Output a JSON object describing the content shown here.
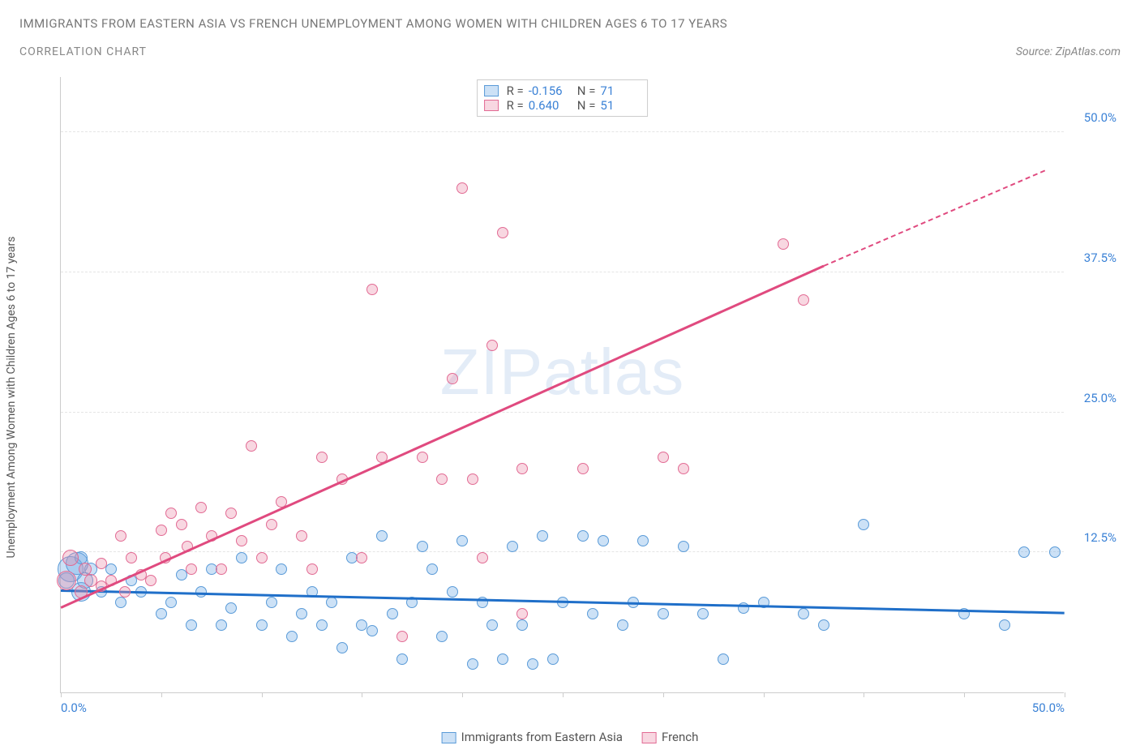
{
  "header": {
    "title": "IMMIGRANTS FROM EASTERN ASIA VS FRENCH UNEMPLOYMENT AMONG WOMEN WITH CHILDREN AGES 6 TO 17 YEARS",
    "subtitle": "CORRELATION CHART",
    "source": "Source: ZipAtlas.com"
  },
  "chart": {
    "type": "scatter",
    "y_axis_label": "Unemployment Among Women with Children Ages 6 to 17 years",
    "xlim": [
      0,
      50
    ],
    "ylim": [
      0,
      55
    ],
    "x_ticks": [
      0,
      5,
      10,
      15,
      20,
      25,
      30,
      35,
      40,
      45,
      50
    ],
    "x_tick_labels": {
      "0": "0.0%",
      "50": "50.0%"
    },
    "y_ticks": [
      12.5,
      25.0,
      37.5,
      50.0
    ],
    "y_tick_labels": [
      "12.5%",
      "25.0%",
      "37.5%",
      "50.0%"
    ],
    "grid_color": "#e5e5e5",
    "axis_color": "#cccccc",
    "tick_label_color": "#3b82d6",
    "background_color": "#ffffff",
    "watermark": "ZIPatlas",
    "series": [
      {
        "name": "Immigrants from Eastern Asia",
        "fill_color": "rgba(110, 170, 230, 0.35)",
        "stroke_color": "#5a9bd8",
        "reg_color": "#1f6fc9",
        "R": "-0.156",
        "N": "71",
        "regression": {
          "x1": 0,
          "y1": 9.0,
          "x2": 50,
          "y2": 7.0
        },
        "points": [
          {
            "x": 0.5,
            "y": 11,
            "r": 16
          },
          {
            "x": 0.3,
            "y": 10,
            "r": 10
          },
          {
            "x": 0.8,
            "y": 11.5,
            "r": 14
          },
          {
            "x": 1,
            "y": 9,
            "r": 12
          },
          {
            "x": 1,
            "y": 12,
            "r": 8
          },
          {
            "x": 1.2,
            "y": 10,
            "r": 10
          },
          {
            "x": 1.5,
            "y": 11,
            "r": 8
          },
          {
            "x": 2,
            "y": 9,
            "r": 7
          },
          {
            "x": 2.5,
            "y": 11,
            "r": 7
          },
          {
            "x": 3,
            "y": 8,
            "r": 7
          },
          {
            "x": 3.5,
            "y": 10,
            "r": 7
          },
          {
            "x": 4,
            "y": 9,
            "r": 7
          },
          {
            "x": 5,
            "y": 7,
            "r": 7
          },
          {
            "x": 5.5,
            "y": 8,
            "r": 7
          },
          {
            "x": 6,
            "y": 10.5,
            "r": 7
          },
          {
            "x": 6.5,
            "y": 6,
            "r": 7
          },
          {
            "x": 7,
            "y": 9,
            "r": 7
          },
          {
            "x": 7.5,
            "y": 11,
            "r": 7
          },
          {
            "x": 8,
            "y": 6,
            "r": 7
          },
          {
            "x": 8.5,
            "y": 7.5,
            "r": 7
          },
          {
            "x": 9,
            "y": 12,
            "r": 7
          },
          {
            "x": 10,
            "y": 6,
            "r": 7
          },
          {
            "x": 10.5,
            "y": 8,
            "r": 7
          },
          {
            "x": 11,
            "y": 11,
            "r": 7
          },
          {
            "x": 11.5,
            "y": 5,
            "r": 7
          },
          {
            "x": 12,
            "y": 7,
            "r": 7
          },
          {
            "x": 12.5,
            "y": 9,
            "r": 7
          },
          {
            "x": 13,
            "y": 6,
            "r": 7
          },
          {
            "x": 13.5,
            "y": 8,
            "r": 7
          },
          {
            "x": 14,
            "y": 4,
            "r": 7
          },
          {
            "x": 14.5,
            "y": 12,
            "r": 7
          },
          {
            "x": 15,
            "y": 6,
            "r": 7
          },
          {
            "x": 15.5,
            "y": 5.5,
            "r": 7
          },
          {
            "x": 16,
            "y": 14,
            "r": 7
          },
          {
            "x": 16.5,
            "y": 7,
            "r": 7
          },
          {
            "x": 17,
            "y": 3,
            "r": 7
          },
          {
            "x": 17.5,
            "y": 8,
            "r": 7
          },
          {
            "x": 18,
            "y": 13,
            "r": 7
          },
          {
            "x": 18.5,
            "y": 11,
            "r": 7
          },
          {
            "x": 19,
            "y": 5,
            "r": 7
          },
          {
            "x": 19.5,
            "y": 9,
            "r": 7
          },
          {
            "x": 20,
            "y": 13.5,
            "r": 7
          },
          {
            "x": 20.5,
            "y": 2.5,
            "r": 7
          },
          {
            "x": 21,
            "y": 8,
            "r": 7
          },
          {
            "x": 21.5,
            "y": 6,
            "r": 7
          },
          {
            "x": 22,
            "y": 3,
            "r": 7
          },
          {
            "x": 22.5,
            "y": 13,
            "r": 7
          },
          {
            "x": 23,
            "y": 6,
            "r": 7
          },
          {
            "x": 23.5,
            "y": 2.5,
            "r": 7
          },
          {
            "x": 24,
            "y": 14,
            "r": 7
          },
          {
            "x": 24.5,
            "y": 3,
            "r": 7
          },
          {
            "x": 25,
            "y": 8,
            "r": 7
          },
          {
            "x": 26,
            "y": 14,
            "r": 7
          },
          {
            "x": 26.5,
            "y": 7,
            "r": 7
          },
          {
            "x": 27,
            "y": 13.5,
            "r": 7
          },
          {
            "x": 28,
            "y": 6,
            "r": 7
          },
          {
            "x": 28.5,
            "y": 8,
            "r": 7
          },
          {
            "x": 29,
            "y": 13.5,
            "r": 7
          },
          {
            "x": 30,
            "y": 7,
            "r": 7
          },
          {
            "x": 31,
            "y": 13,
            "r": 7
          },
          {
            "x": 32,
            "y": 7,
            "r": 7
          },
          {
            "x": 33,
            "y": 3,
            "r": 7
          },
          {
            "x": 34,
            "y": 7.5,
            "r": 7
          },
          {
            "x": 35,
            "y": 8,
            "r": 7
          },
          {
            "x": 37,
            "y": 7,
            "r": 7
          },
          {
            "x": 38,
            "y": 6,
            "r": 7
          },
          {
            "x": 40,
            "y": 15,
            "r": 7
          },
          {
            "x": 45,
            "y": 7,
            "r": 7
          },
          {
            "x": 47,
            "y": 6,
            "r": 7
          },
          {
            "x": 48,
            "y": 12.5,
            "r": 7
          },
          {
            "x": 49.5,
            "y": 12.5,
            "r": 7
          }
        ]
      },
      {
        "name": "French",
        "fill_color": "rgba(235, 140, 170, 0.35)",
        "stroke_color": "#e26b94",
        "reg_color": "#e04a7f",
        "R": "0.640",
        "N": "51",
        "regression": {
          "x1": 0,
          "y1": 7.5,
          "x2": 38,
          "y2": 38
        },
        "regression_dash": {
          "x1": 38,
          "y1": 38,
          "x2": 49,
          "y2": 46.5
        },
        "points": [
          {
            "x": 0.5,
            "y": 12,
            "r": 10
          },
          {
            "x": 0.3,
            "y": 10,
            "r": 12
          },
          {
            "x": 1,
            "y": 9,
            "r": 8
          },
          {
            "x": 1.2,
            "y": 11,
            "r": 8
          },
          {
            "x": 1.5,
            "y": 10,
            "r": 8
          },
          {
            "x": 2,
            "y": 9.5,
            "r": 7
          },
          {
            "x": 2,
            "y": 11.5,
            "r": 7
          },
          {
            "x": 2.5,
            "y": 10,
            "r": 7
          },
          {
            "x": 3,
            "y": 14,
            "r": 7
          },
          {
            "x": 3.2,
            "y": 9,
            "r": 7
          },
          {
            "x": 3.5,
            "y": 12,
            "r": 7
          },
          {
            "x": 4,
            "y": 10.5,
            "r": 7
          },
          {
            "x": 4.5,
            "y": 10,
            "r": 7
          },
          {
            "x": 5,
            "y": 14.5,
            "r": 7
          },
          {
            "x": 5.2,
            "y": 12,
            "r": 7
          },
          {
            "x": 5.5,
            "y": 16,
            "r": 7
          },
          {
            "x": 6,
            "y": 15,
            "r": 7
          },
          {
            "x": 6.3,
            "y": 13,
            "r": 7
          },
          {
            "x": 6.5,
            "y": 11,
            "r": 7
          },
          {
            "x": 7,
            "y": 16.5,
            "r": 7
          },
          {
            "x": 7.5,
            "y": 14,
            "r": 7
          },
          {
            "x": 8,
            "y": 11,
            "r": 7
          },
          {
            "x": 8.5,
            "y": 16,
            "r": 7
          },
          {
            "x": 9,
            "y": 13.5,
            "r": 7
          },
          {
            "x": 9.5,
            "y": 22,
            "r": 7
          },
          {
            "x": 10,
            "y": 12,
            "r": 7
          },
          {
            "x": 10.5,
            "y": 15,
            "r": 7
          },
          {
            "x": 11,
            "y": 17,
            "r": 7
          },
          {
            "x": 12,
            "y": 14,
            "r": 7
          },
          {
            "x": 12.5,
            "y": 11,
            "r": 7
          },
          {
            "x": 13,
            "y": 21,
            "r": 7
          },
          {
            "x": 14,
            "y": 19,
            "r": 7
          },
          {
            "x": 15,
            "y": 12,
            "r": 7
          },
          {
            "x": 15.5,
            "y": 36,
            "r": 7
          },
          {
            "x": 16,
            "y": 21,
            "r": 7
          },
          {
            "x": 17,
            "y": 5,
            "r": 7
          },
          {
            "x": 18,
            "y": 21,
            "r": 7
          },
          {
            "x": 19,
            "y": 19,
            "r": 7
          },
          {
            "x": 19.5,
            "y": 28,
            "r": 7
          },
          {
            "x": 20,
            "y": 45,
            "r": 7
          },
          {
            "x": 20.5,
            "y": 19,
            "r": 7
          },
          {
            "x": 21,
            "y": 12,
            "r": 7
          },
          {
            "x": 21.5,
            "y": 31,
            "r": 7
          },
          {
            "x": 22,
            "y": 41,
            "r": 7
          },
          {
            "x": 23,
            "y": 7,
            "r": 7
          },
          {
            "x": 23,
            "y": 20,
            "r": 7
          },
          {
            "x": 26,
            "y": 20,
            "r": 7
          },
          {
            "x": 30,
            "y": 21,
            "r": 7
          },
          {
            "x": 31,
            "y": 20,
            "r": 7
          },
          {
            "x": 36,
            "y": 40,
            "r": 7
          },
          {
            "x": 37,
            "y": 35,
            "r": 7
          }
        ]
      }
    ],
    "legend_stats": {
      "rows": [
        {
          "swatch_fill": "rgba(110,170,230,0.35)",
          "swatch_stroke": "#5a9bd8",
          "R": "-0.156",
          "N": "71"
        },
        {
          "swatch_fill": "rgba(235,140,170,0.35)",
          "swatch_stroke": "#e26b94",
          "R": "0.640",
          "N": "51"
        }
      ]
    },
    "bottom_legend": [
      {
        "swatch_fill": "rgba(110,170,230,0.35)",
        "swatch_stroke": "#5a9bd8",
        "label": "Immigrants from Eastern Asia"
      },
      {
        "swatch_fill": "rgba(235,140,170,0.35)",
        "swatch_stroke": "#e26b94",
        "label": "French"
      }
    ]
  }
}
